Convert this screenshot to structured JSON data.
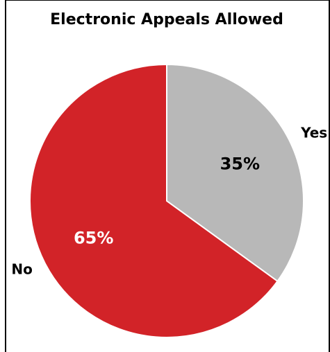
{
  "chart_data": {
    "type": "pie",
    "title": "Electronic Appeals Allowed",
    "slices": [
      {
        "label": "Yes",
        "value": 35,
        "pct_label": "35%",
        "color": "#b8b8b8",
        "pct_color": "#000000"
      },
      {
        "label": "No",
        "value": 65,
        "pct_label": "65%",
        "color": "#d22328",
        "pct_color": "#ffffff"
      }
    ],
    "start": "12 o'clock, clockwise",
    "slice_border_color": "#ffffff",
    "frame_color": "#000000",
    "legend": "none"
  }
}
